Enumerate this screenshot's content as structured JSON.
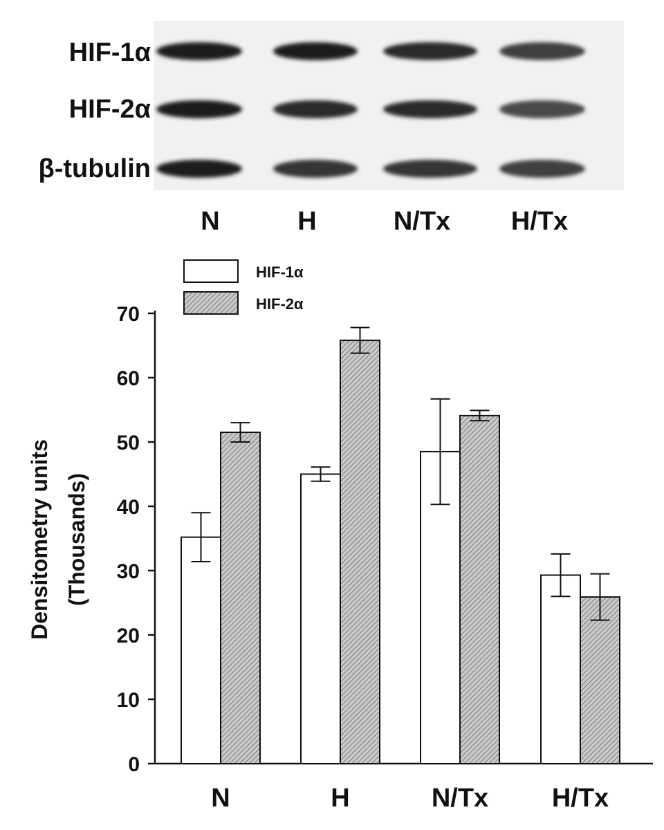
{
  "blot": {
    "rows": [
      {
        "label": "HIF-1α",
        "intensity": [
          1.0,
          1.0,
          0.95,
          0.85
        ]
      },
      {
        "label": "HIF-2α",
        "intensity": [
          1.0,
          0.95,
          0.95,
          0.8
        ]
      },
      {
        "label": "β-tubulin",
        "intensity": [
          1.0,
          0.9,
          0.9,
          0.85
        ]
      }
    ],
    "lanes": [
      "N",
      "H",
      "N/Tx",
      "H/Tx"
    ]
  },
  "chart_data": {
    "type": "bar",
    "categories": [
      "N",
      "H",
      "N/Tx",
      "H/Tx"
    ],
    "series": [
      {
        "name": "HIF-1α",
        "values": [
          35.2,
          45.0,
          48.5,
          29.3
        ],
        "errors": [
          3.8,
          1.1,
          8.2,
          3.3
        ],
        "color": "#ffffff"
      },
      {
        "name": "HIF-2α",
        "values": [
          51.5,
          65.8,
          54.1,
          25.9
        ],
        "errors": [
          1.5,
          2.0,
          0.8,
          3.6
        ],
        "color": "#bdbdbd"
      }
    ],
    "ylabel": "Densitometry units",
    "ylabel_sub": "(Thousands)",
    "xlabel": "",
    "ylim": [
      0,
      70
    ],
    "yticks": [
      0,
      10,
      20,
      30,
      40,
      50,
      60,
      70
    ],
    "legend_position": "top-left",
    "grid": false
  }
}
